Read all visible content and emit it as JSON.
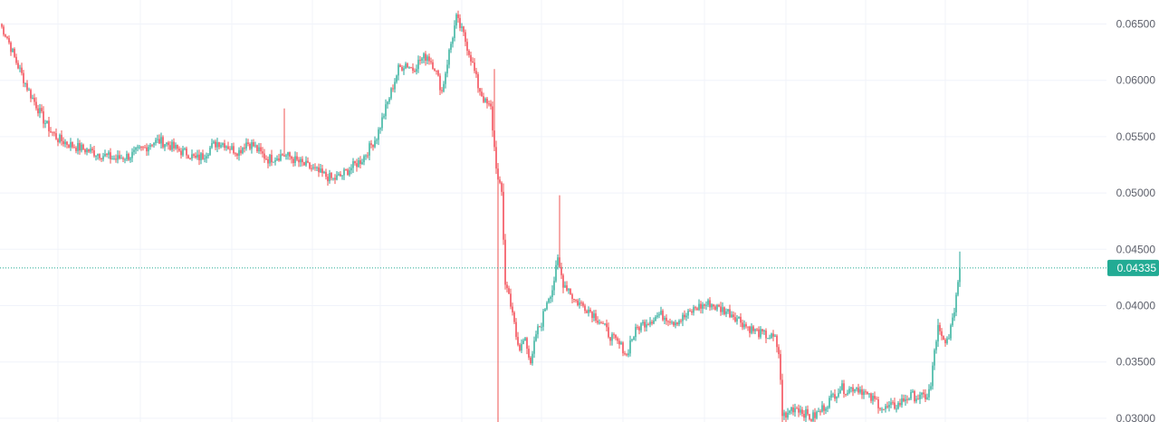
{
  "colors": {
    "background": "#ffffff",
    "up": "#26a69a",
    "up_body": "#22ab94",
    "down": "#ef5350",
    "down_body": "#f23645",
    "grid": "#f0f3fa",
    "axis_text": "#5d606b",
    "price_line": "#22ab94"
  },
  "chart_data": {
    "type": "candlestick",
    "title": "",
    "xlabel": "",
    "ylabel": "",
    "ylim": [
      0.02967,
      0.06713
    ],
    "y_ticks": [
      "0.06500",
      "0.06000",
      "0.05500",
      "0.05000",
      "0.04500",
      "0.04000",
      "0.03500",
      "0.03000"
    ],
    "last_price": "0.04335",
    "grid": true,
    "anchors": [
      [
        0,
        0.065
      ],
      [
        4,
        0.0638
      ],
      [
        8,
        0.062
      ],
      [
        12,
        0.0605
      ],
      [
        16,
        0.059
      ],
      [
        20,
        0.0578
      ],
      [
        24,
        0.0565
      ],
      [
        28,
        0.0555
      ],
      [
        32,
        0.0548
      ],
      [
        36,
        0.0545
      ],
      [
        40,
        0.0542
      ],
      [
        44,
        0.054
      ],
      [
        48,
        0.0538
      ],
      [
        52,
        0.0536
      ],
      [
        56,
        0.0534
      ],
      [
        60,
        0.0532
      ],
      [
        64,
        0.053
      ],
      [
        68,
        0.0532
      ],
      [
        72,
        0.0533
      ],
      [
        76,
        0.0537
      ],
      [
        80,
        0.054
      ],
      [
        84,
        0.0545
      ],
      [
        88,
        0.0546
      ],
      [
        92,
        0.0544
      ],
      [
        96,
        0.054
      ],
      [
        100,
        0.0537
      ],
      [
        104,
        0.0535
      ],
      [
        108,
        0.053
      ],
      [
        112,
        0.0533
      ],
      [
        116,
        0.054
      ],
      [
        120,
        0.0545
      ],
      [
        124,
        0.0544
      ],
      [
        128,
        0.0539
      ],
      [
        132,
        0.0537
      ],
      [
        136,
        0.0545
      ],
      [
        140,
        0.0542
      ],
      [
        144,
        0.0535
      ],
      [
        148,
        0.053
      ],
      [
        152,
        0.0532
      ],
      [
        156,
        0.0534
      ],
      [
        160,
        0.0532
      ],
      [
        164,
        0.0528
      ],
      [
        168,
        0.0525
      ],
      [
        172,
        0.0522
      ],
      [
        176,
        0.0518
      ],
      [
        180,
        0.0515
      ],
      [
        184,
        0.0512
      ],
      [
        188,
        0.0515
      ],
      [
        192,
        0.052
      ],
      [
        196,
        0.0525
      ],
      [
        200,
        0.053
      ],
      [
        204,
        0.054
      ],
      [
        208,
        0.055
      ],
      [
        212,
        0.057
      ],
      [
        216,
        0.059
      ],
      [
        220,
        0.061
      ],
      [
        224,
        0.0615
      ],
      [
        228,
        0.061
      ],
      [
        232,
        0.0618
      ],
      [
        236,
        0.0622
      ],
      [
        240,
        0.0612
      ],
      [
        244,
        0.059
      ],
      [
        248,
        0.0625
      ],
      [
        252,
        0.0655
      ],
      [
        256,
        0.064
      ],
      [
        260,
        0.062
      ],
      [
        264,
        0.0595
      ],
      [
        268,
        0.058
      ],
      [
        271,
        0.0575
      ],
      [
        273,
        0.054
      ],
      [
        275,
        0.051
      ],
      [
        277,
        0.05
      ],
      [
        279,
        0.042
      ],
      [
        281,
        0.041
      ],
      [
        283,
        0.0395
      ],
      [
        285,
        0.037
      ],
      [
        287,
        0.036
      ],
      [
        290,
        0.0375
      ],
      [
        293,
        0.0345
      ],
      [
        296,
        0.0375
      ],
      [
        299,
        0.0385
      ],
      [
        302,
        0.0405
      ],
      [
        305,
        0.0415
      ],
      [
        308,
        0.044
      ],
      [
        311,
        0.042
      ],
      [
        314,
        0.0415
      ],
      [
        317,
        0.0405
      ],
      [
        320,
        0.0402
      ],
      [
        324,
        0.0398
      ],
      [
        328,
        0.0392
      ],
      [
        332,
        0.0385
      ],
      [
        336,
        0.0375
      ],
      [
        340,
        0.0368
      ],
      [
        344,
        0.0362
      ],
      [
        346,
        0.0355
      ],
      [
        348,
        0.0368
      ],
      [
        352,
        0.038
      ],
      [
        356,
        0.0385
      ],
      [
        360,
        0.0388
      ],
      [
        364,
        0.0392
      ],
      [
        368,
        0.039
      ],
      [
        372,
        0.0386
      ],
      [
        376,
        0.0388
      ],
      [
        380,
        0.0392
      ],
      [
        384,
        0.0398
      ],
      [
        388,
        0.04
      ],
      [
        392,
        0.0402
      ],
      [
        396,
        0.0398
      ],
      [
        400,
        0.0396
      ],
      [
        404,
        0.0393
      ],
      [
        408,
        0.0388
      ],
      [
        412,
        0.0382
      ],
      [
        416,
        0.0378
      ],
      [
        420,
        0.0375
      ],
      [
        424,
        0.0373
      ],
      [
        428,
        0.037
      ],
      [
        430,
        0.0358
      ],
      [
        432,
        0.0305
      ],
      [
        434,
        0.03
      ],
      [
        436,
        0.0308
      ],
      [
        440,
        0.031
      ],
      [
        444,
        0.0305
      ],
      [
        448,
        0.03
      ],
      [
        452,
        0.0305
      ],
      [
        456,
        0.0312
      ],
      [
        460,
        0.032
      ],
      [
        464,
        0.0327
      ],
      [
        468,
        0.0325
      ],
      [
        472,
        0.0328
      ],
      [
        476,
        0.0325
      ],
      [
        480,
        0.0318
      ],
      [
        484,
        0.0315
      ],
      [
        488,
        0.0308
      ],
      [
        492,
        0.031
      ],
      [
        496,
        0.0312
      ],
      [
        500,
        0.0318
      ],
      [
        504,
        0.032
      ],
      [
        508,
        0.0318
      ],
      [
        512,
        0.032
      ],
      [
        514,
        0.0328
      ],
      [
        516,
        0.036
      ],
      [
        518,
        0.038
      ],
      [
        520,
        0.037
      ],
      [
        522,
        0.0365
      ],
      [
        524,
        0.0375
      ],
      [
        526,
        0.0385
      ],
      [
        528,
        0.041
      ],
      [
        530,
        0.0433
      ]
    ],
    "candle_count": 530
  }
}
